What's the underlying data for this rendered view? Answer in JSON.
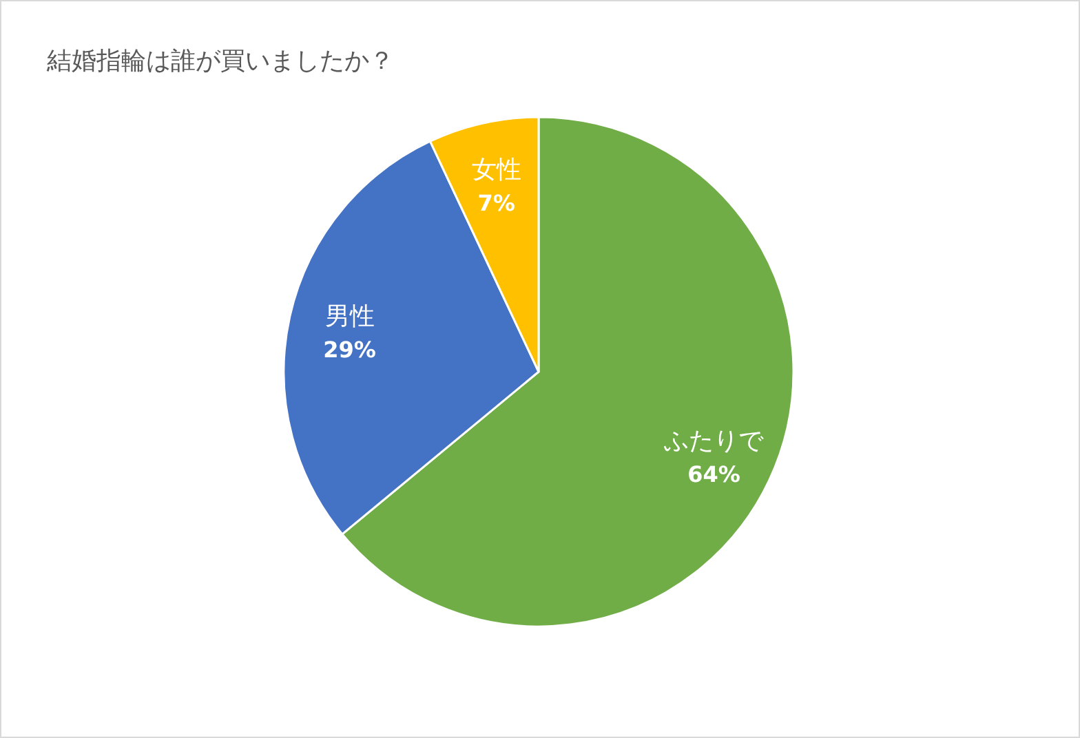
{
  "chart_data": {
    "type": "pie",
    "title": "結婚指輪は誰が買いましたか？",
    "categories": [
      "ふたりで",
      "男性",
      "女性"
    ],
    "values": [
      64,
      29,
      7
    ],
    "colors": [
      "#70ad47",
      "#4472c4",
      "#ffc000"
    ],
    "value_labels": [
      "64%",
      "29%",
      "7%"
    ]
  }
}
